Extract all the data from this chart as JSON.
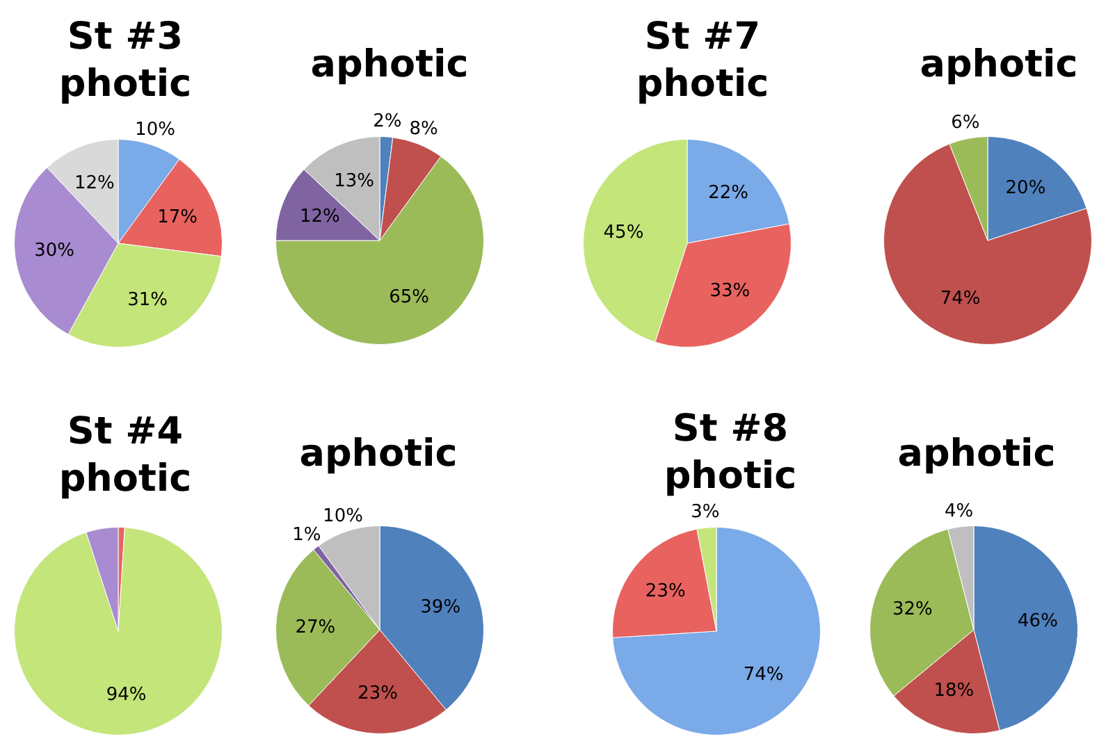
{
  "chart_data": [
    {
      "type": "pie",
      "title": "St #3\nphotic",
      "categories": [
        null,
        null,
        null,
        null,
        null
      ],
      "values": [
        10,
        17,
        31,
        30,
        12
      ],
      "colors": [
        "#7aaae8",
        "#e8625f",
        "#c4e57a",
        "#a88bd0",
        "#d9d9d9"
      ],
      "value_labels": [
        "10%",
        "17%",
        "31%",
        "30%",
        "12%"
      ]
    },
    {
      "type": "pie",
      "title": "aphotic",
      "categories": [
        null,
        null,
        null,
        null,
        null
      ],
      "values": [
        2,
        8,
        65,
        12,
        13
      ],
      "colors": [
        "#4f81bd",
        "#c0504d",
        "#9bbb59",
        "#8064a2",
        "#bfbfbf"
      ],
      "value_labels": [
        "2%",
        "8%",
        "65%",
        "12%",
        "13%"
      ]
    },
    {
      "type": "pie",
      "title": "St #7\nphotic",
      "categories": [
        null,
        null,
        null
      ],
      "values": [
        22,
        33,
        45
      ],
      "colors": [
        "#7aaae8",
        "#e8625f",
        "#c4e57a"
      ],
      "value_labels": [
        "22%",
        "33%",
        "45%"
      ]
    },
    {
      "type": "pie",
      "title": "aphotic",
      "categories": [
        null,
        null,
        null
      ],
      "values": [
        20,
        74,
        6
      ],
      "colors": [
        "#4f81bd",
        "#c0504d",
        "#9bbb59"
      ],
      "value_labels": [
        "20%",
        "74%",
        "6%"
      ]
    },
    {
      "type": "pie",
      "title": "St #4\nphotic",
      "categories": [
        null,
        null,
        null
      ],
      "values": [
        1,
        94,
        5
      ],
      "colors": [
        "#e8625f",
        "#c4e57a",
        "#a88bd0"
      ],
      "value_labels": [
        null,
        "94%",
        null
      ]
    },
    {
      "type": "pie",
      "title": "aphotic",
      "categories": [
        null,
        null,
        null,
        null,
        null
      ],
      "values": [
        39,
        23,
        27,
        1,
        10
      ],
      "colors": [
        "#4f81bd",
        "#c0504d",
        "#9bbb59",
        "#8064a2",
        "#bfbfbf"
      ],
      "value_labels": [
        "39%",
        "23%",
        "27%",
        "1%",
        "10%"
      ]
    },
    {
      "type": "pie",
      "title": "St #8\nphotic",
      "categories": [
        null,
        null,
        null
      ],
      "values": [
        74,
        23,
        3
      ],
      "colors": [
        "#7aaae8",
        "#e8625f",
        "#c4e57a"
      ],
      "value_labels": [
        "74%",
        "23%",
        "3%"
      ]
    },
    {
      "type": "pie",
      "title": "aphotic",
      "categories": [
        null,
        null,
        null,
        null
      ],
      "values": [
        46,
        18,
        32,
        4
      ],
      "colors": [
        "#4f81bd",
        "#c0504d",
        "#9bbb59",
        "#bfbfbf"
      ],
      "value_labels": [
        "46%",
        "18%",
        "32%",
        "4%"
      ]
    }
  ]
}
